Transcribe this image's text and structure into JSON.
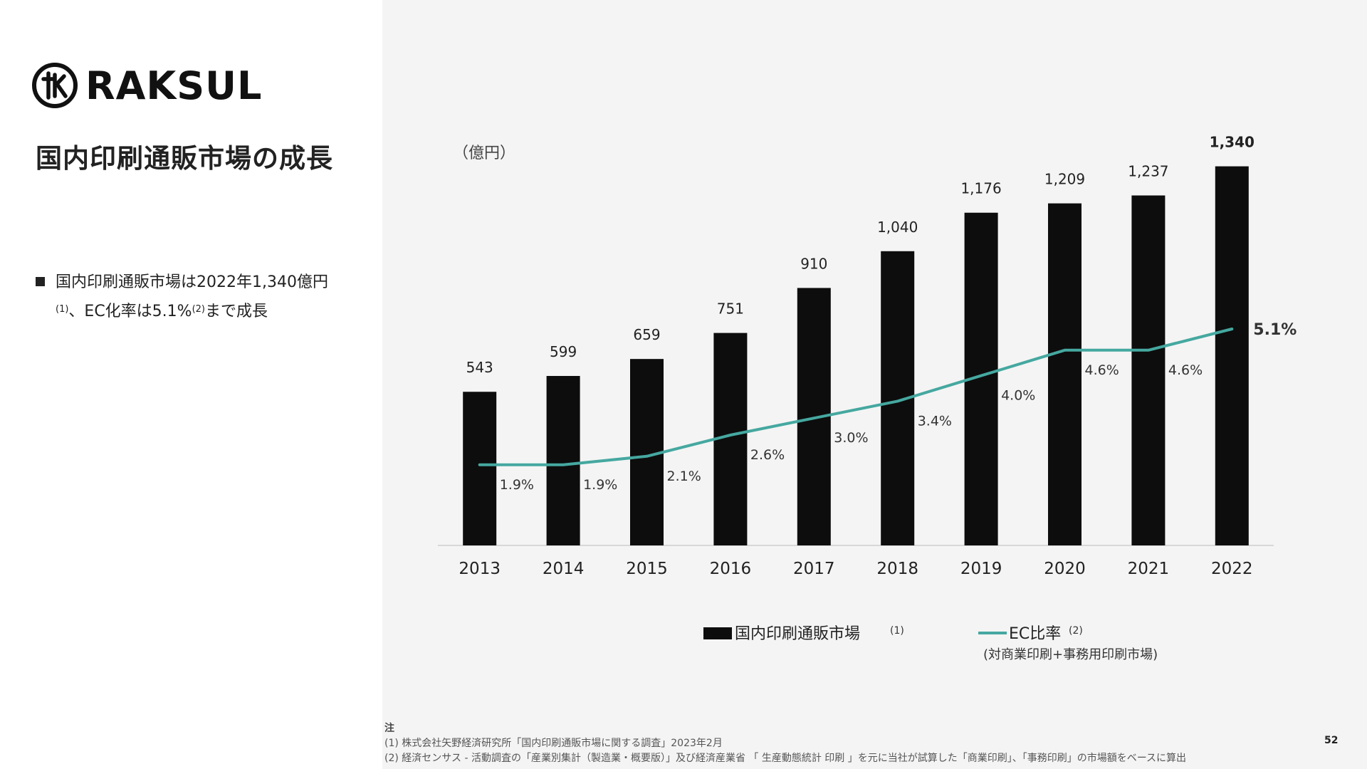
{
  "logo": {
    "name": "RAKSUL"
  },
  "page_title": "国内印刷通販市場の成長",
  "bullet": {
    "line1": "国内印刷通販市場は2022年1,340億円",
    "sup1": "(1)",
    "text2a": "、EC化率は5.1%",
    "sup2": "(2)",
    "text2b": "まで成長"
  },
  "chart_data": {
    "type": "bar",
    "title": "",
    "ylabel": "（億円）",
    "xlabel": "",
    "ylim": [
      0,
      1500
    ],
    "y2lim": [
      0,
      10
    ],
    "categories": [
      "2013",
      "2014",
      "2015",
      "2016",
      "2017",
      "2018",
      "2019",
      "2020",
      "2021",
      "2022"
    ],
    "series": [
      {
        "name": "国内印刷通販市場",
        "type": "bar",
        "color": "#0d0d0d",
        "values": [
          543,
          599,
          659,
          751,
          910,
          1040,
          1176,
          1209,
          1237,
          1340
        ],
        "labels": [
          "543",
          "599",
          "659",
          "751",
          "910",
          "1,040",
          "1,176",
          "1,209",
          "1,237",
          "1,340"
        ]
      },
      {
        "name": "EC比率",
        "type": "line",
        "color": "#45a8a0",
        "values": [
          1.9,
          1.9,
          2.1,
          2.6,
          3.0,
          3.4,
          4.0,
          4.6,
          4.6,
          5.1
        ],
        "labels": [
          "1.9%",
          "1.9%",
          "2.1%",
          "2.6%",
          "3.0%",
          "3.4%",
          "4.0%",
          "4.6%",
          "4.6%",
          "5.1%"
        ]
      }
    ],
    "legend": {
      "bar_label": "国内印刷通販市場",
      "bar_sup": "(1)",
      "line_label": "EC比率",
      "line_sup": "(2)",
      "line_sub": "(対商業印刷+事務用印刷市場)",
      "position": "bottom-center"
    }
  },
  "notes": {
    "head": "注",
    "items": [
      "(1) 株式会社矢野経済研究所「国内印刷通販市場に関する調査」2023年2月",
      "(2) 経済センサス - 活動調査の「産業別集計（製造業・概要版）」及び経済産業省 「 生産動態統計 印刷 」を元に当社が試算した「商業印刷」、「事務印刷」の市場額をベースに算出"
    ]
  },
  "page_number": "52"
}
